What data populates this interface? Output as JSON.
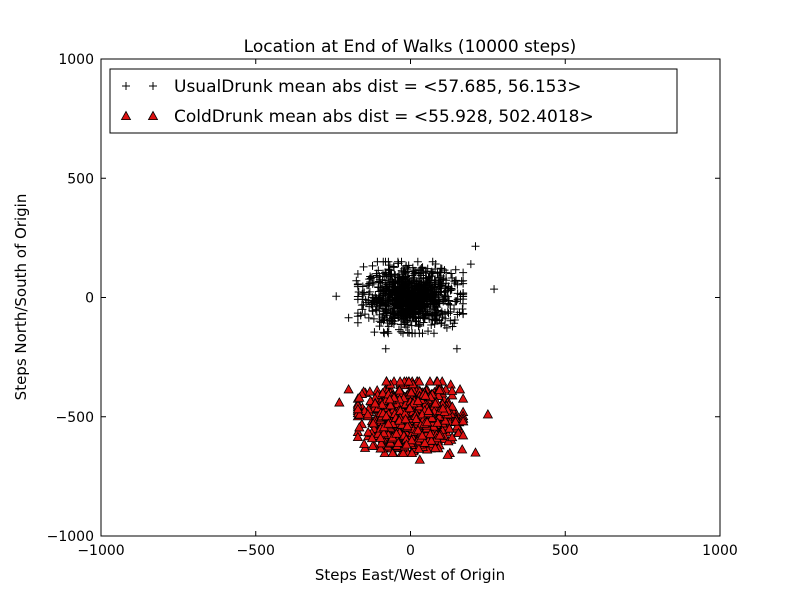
{
  "chart_data": {
    "type": "scatter",
    "title": "Location at End of Walks (10000 steps)",
    "xlabel": "Steps East/West of Origin",
    "ylabel": "Steps North/South of Origin",
    "xlim": [
      -1000,
      1000
    ],
    "ylim": [
      -1000,
      1000
    ],
    "xticks": [
      -1000,
      -500,
      0,
      500,
      1000
    ],
    "yticks": [
      -1000,
      -500,
      0,
      500,
      1000
    ],
    "xtick_labels": [
      "−1000",
      "−500",
      "0",
      "500",
      "1000"
    ],
    "ytick_labels": [
      "−1000",
      "−500",
      "0",
      "500",
      "1000"
    ],
    "grid": false,
    "legend_position": "top-left",
    "series": [
      {
        "name": "UsualDrunk mean abs dist = <57.685, 56.153>",
        "marker": "plus",
        "color": "#000000",
        "cluster": {
          "center": [
            0,
            0
          ],
          "spread": [
            72,
            60
          ],
          "count": 1000
        },
        "outliers": [
          [
            -240,
            5
          ],
          [
            270,
            35
          ],
          [
            210,
            215
          ],
          [
            -200,
            -85
          ],
          [
            150,
            -215
          ],
          [
            -80,
            -215
          ],
          [
            195,
            140
          ],
          [
            -175,
            70
          ]
        ]
      },
      {
        "name": "ColdDrunk mean abs dist = <55.928, 502.4018>",
        "marker": "triangle",
        "color": "#dd1111",
        "edge": "#000000",
        "cluster": {
          "center": [
            0,
            -502
          ],
          "spread": [
            70,
            65
          ],
          "count": 1000
        },
        "outliers": [
          [
            -230,
            -440
          ],
          [
            250,
            -490
          ],
          [
            210,
            -650
          ],
          [
            -200,
            -385
          ],
          [
            160,
            -385
          ],
          [
            30,
            -680
          ],
          [
            120,
            -660
          ]
        ]
      }
    ]
  }
}
